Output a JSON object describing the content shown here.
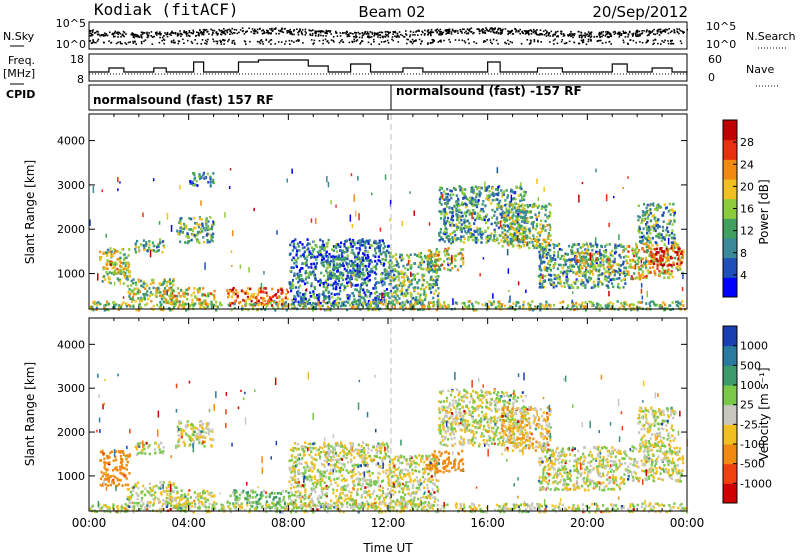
{
  "header": {
    "station": "Kodiak (fitACF)",
    "beam": "Beam 02",
    "date": "20/Sep/2012"
  },
  "status_strip": {
    "left_label_1": "N.Sky",
    "left_label_2a": "Freq.",
    "left_label_2b": "[MHz]",
    "left_label_3": "CPID",
    "nsky_ticks": [
      "10^5",
      "10^0"
    ],
    "freq_ticks": [
      "18",
      "8"
    ],
    "right_ticks_1": [
      "10^5",
      "10^0"
    ],
    "right_ticks_2": [
      "60",
      "0"
    ],
    "right_label_1": "N.Search",
    "right_label_2": "Nave",
    "cpid_segments": [
      {
        "label": "normalsound (fast) 157 RF",
        "start_hour": 0,
        "end_hour": 12
      },
      {
        "label": "normalsound (fast) -157 RF",
        "start_hour": 12,
        "end_hour": 24
      }
    ]
  },
  "chart_data": [
    {
      "type": "heatmap",
      "name_printed": "Power",
      "ylabel": "Slant Range [km]",
      "xlabel": "",
      "xlim_hours": [
        0,
        24
      ],
      "ylim_km": [
        200,
        4600
      ],
      "y_ticks": [
        "1000",
        "2000",
        "3000",
        "4000"
      ],
      "colorbar_label": "Power [dB]",
      "colorbar_ticks": [
        "4",
        "8",
        "12",
        "16",
        "20",
        "24",
        "28"
      ],
      "colorbar_colors": [
        "#0000ff",
        "#1f4fb8",
        "#3a8a9a",
        "#3fa060",
        "#8ccc3c",
        "#f0c020",
        "#f08a10",
        "#e83010",
        "#c00000"
      ],
      "dashed_marker_hour": 12,
      "echo_regions": [
        {
          "t0": 0.4,
          "t1": 1.6,
          "r0": 800,
          "r1": 1600,
          "intensity": 0.5
        },
        {
          "t0": 0.8,
          "t1": 1.3,
          "r0": 1000,
          "r1": 1300,
          "intensity": 0.7
        },
        {
          "t0": 1.8,
          "t1": 3.0,
          "r0": 1500,
          "r1": 1800,
          "intensity": 0.4
        },
        {
          "t0": 1.5,
          "t1": 3.5,
          "r0": 400,
          "r1": 900,
          "intensity": 0.5
        },
        {
          "t0": 3.5,
          "t1": 5.0,
          "r0": 1700,
          "r1": 2300,
          "intensity": 0.4
        },
        {
          "t0": 4.0,
          "t1": 5.0,
          "r0": 3000,
          "r1": 3300,
          "intensity": 0.3
        },
        {
          "t0": 3.0,
          "t1": 5.0,
          "r0": 300,
          "r1": 700,
          "intensity": 0.6
        },
        {
          "t0": 5.5,
          "t1": 8.0,
          "r0": 300,
          "r1": 700,
          "intensity": 0.8
        },
        {
          "t0": 8.0,
          "t1": 12.0,
          "r0": 300,
          "r1": 1800,
          "intensity": 0.25
        },
        {
          "t0": 9.5,
          "t1": 11.0,
          "r0": 900,
          "r1": 1400,
          "intensity": 0.35
        },
        {
          "t0": 12.0,
          "t1": 14.0,
          "r0": 300,
          "r1": 1500,
          "intensity": 0.4
        },
        {
          "t0": 13.5,
          "t1": 15.0,
          "r0": 1100,
          "r1": 1600,
          "intensity": 0.55
        },
        {
          "t0": 14.0,
          "t1": 17.5,
          "r0": 1700,
          "r1": 3000,
          "intensity": 0.35
        },
        {
          "t0": 16.5,
          "t1": 18.5,
          "r0": 1600,
          "r1": 2600,
          "intensity": 0.45
        },
        {
          "t0": 18.0,
          "t1": 21.5,
          "r0": 700,
          "r1": 1700,
          "intensity": 0.35
        },
        {
          "t0": 19.5,
          "t1": 21.0,
          "r0": 1000,
          "r1": 1500,
          "intensity": 0.55
        },
        {
          "t0": 21.5,
          "t1": 23.8,
          "r0": 900,
          "r1": 1700,
          "intensity": 0.6
        },
        {
          "t0": 22.5,
          "t1": 23.8,
          "r0": 1200,
          "r1": 1600,
          "intensity": 0.85
        },
        {
          "t0": 22.0,
          "t1": 23.5,
          "r0": 1700,
          "r1": 2600,
          "intensity": 0.35
        },
        {
          "t0": 0.0,
          "t1": 24.0,
          "r0": 200,
          "r1": 400,
          "intensity": 0.5
        }
      ]
    },
    {
      "type": "heatmap",
      "name_printed": "Velocity",
      "ylabel": "Slant Range [km]",
      "xlabel": "Time UT",
      "xlim_hours": [
        0,
        24
      ],
      "ylim_km": [
        200,
        4600
      ],
      "x_ticks": [
        "00:00",
        "04:00",
        "08:00",
        "12:00",
        "16:00",
        "20:00",
        "00:00"
      ],
      "y_ticks": [
        "1000",
        "2000",
        "3000",
        "4000"
      ],
      "colorbar_label": "Velocity [m s⁻¹]",
      "colorbar_ticks": [
        "1000",
        "500",
        "100",
        "25",
        "-25",
        "-100",
        "-500",
        "-1000"
      ],
      "colorbar_colors": [
        "#1a3fb0",
        "#2a7aa0",
        "#3a9a6a",
        "#7ac84a",
        "#c8c8c0",
        "#f0c020",
        "#f08a10",
        "#f04010",
        "#d00000"
      ],
      "dashed_marker_hour": 12,
      "echo_regions": [
        {
          "t0": 0.4,
          "t1": 1.6,
          "r0": 800,
          "r1": 1600,
          "velocity": -400
        },
        {
          "t0": 1.8,
          "t1": 3.0,
          "r0": 1500,
          "r1": 1800,
          "velocity": 0
        },
        {
          "t0": 1.5,
          "t1": 3.5,
          "r0": 400,
          "r1": 900,
          "velocity": 0
        },
        {
          "t0": 3.5,
          "t1": 5.0,
          "r0": 1700,
          "r1": 2300,
          "velocity": 0
        },
        {
          "t0": 3.0,
          "t1": 5.0,
          "r0": 300,
          "r1": 700,
          "velocity": 0
        },
        {
          "t0": 5.5,
          "t1": 8.0,
          "r0": 300,
          "r1": 700,
          "velocity": 80
        },
        {
          "t0": 8.0,
          "t1": 12.0,
          "r0": 300,
          "r1": 1800,
          "velocity": 0
        },
        {
          "t0": 12.0,
          "t1": 14.0,
          "r0": 300,
          "r1": 1500,
          "velocity": 0
        },
        {
          "t0": 13.5,
          "t1": 15.0,
          "r0": 1100,
          "r1": 1600,
          "velocity": -200
        },
        {
          "t0": 14.0,
          "t1": 17.5,
          "r0": 1700,
          "r1": 3000,
          "velocity": 0
        },
        {
          "t0": 16.5,
          "t1": 18.5,
          "r0": 1600,
          "r1": 2600,
          "velocity": -60
        },
        {
          "t0": 18.0,
          "t1": 21.5,
          "r0": 700,
          "r1": 1700,
          "velocity": 0
        },
        {
          "t0": 21.5,
          "t1": 23.8,
          "r0": 900,
          "r1": 1700,
          "velocity": 0
        },
        {
          "t0": 22.0,
          "t1": 23.5,
          "r0": 1700,
          "r1": 2600,
          "velocity": 0
        },
        {
          "t0": 0.0,
          "t1": 24.0,
          "r0": 200,
          "r1": 400,
          "velocity": 0
        }
      ]
    }
  ]
}
